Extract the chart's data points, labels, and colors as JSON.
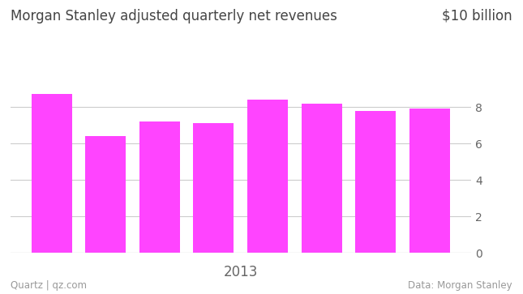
{
  "title_left": "Morgan Stanley adjusted quarterly net revenues",
  "title_right": "$10 billion",
  "xlabel": "2013",
  "footer_left": "Quartz | qz.com",
  "footer_right": "Data: Morgan Stanley",
  "values": [
    8.7,
    6.4,
    7.2,
    7.1,
    8.4,
    8.2,
    7.8,
    7.9
  ],
  "bar_color": "#ff44ff",
  "background_color": "#ffffff",
  "plot_bg_color": "#ffffff",
  "ylim": [
    0,
    10
  ],
  "yticks": [
    0,
    2,
    4,
    6,
    8
  ],
  "grid_color": "#cccccc",
  "title_fontsize": 12,
  "tick_fontsize": 10,
  "footer_fontsize": 8.5,
  "xlabel_fontsize": 12,
  "title_color": "#444444",
  "footer_color": "#999999",
  "tick_color": "#666666"
}
